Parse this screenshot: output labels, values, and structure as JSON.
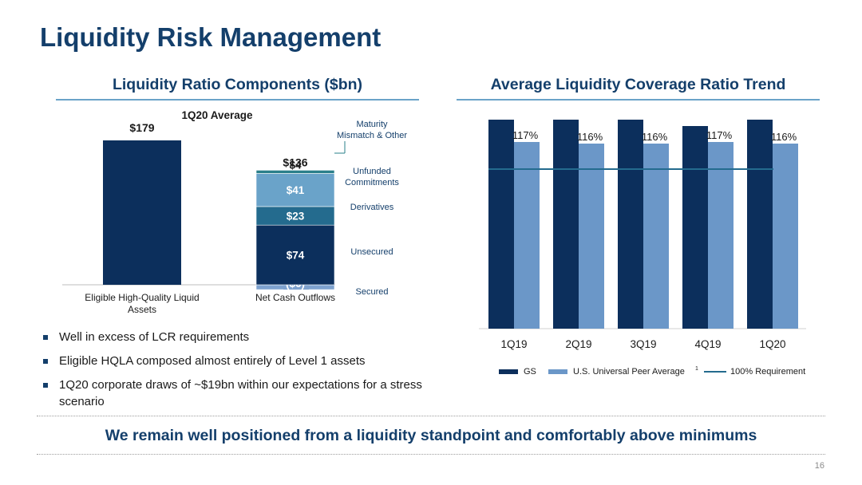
{
  "page": {
    "title": "Liquidity Risk Management",
    "footer": "We remain well positioned from a liquidity standpoint and comfortably above minimums",
    "page_number": "16"
  },
  "left_section": {
    "title": "Liquidity Ratio Components ($bn)"
  },
  "right_section": {
    "title": "Average Liquidity Coverage Ratio Trend"
  },
  "bullets": [
    "Well in excess of LCR requirements",
    "Eligible HQLA composed almost entirely of Level 1 assets",
    "1Q20 corporate draws of ~$19bn within our expectations for a stress scenario"
  ],
  "colors": {
    "navy": "#0c2f5c",
    "mid_blue": "#246b8e",
    "light_blue": "#6aa3c9",
    "peer_blue": "#6b97c8",
    "secured": "#7ea2cf",
    "title_blue": "#143f6b"
  },
  "chart_data": [
    {
      "type": "bar",
      "title": "1Q20 Average",
      "categories": [
        "Eligible High-Quality Liquid Assets",
        "Net Cash Outflows"
      ],
      "ylim": [
        -6,
        179
      ],
      "stacked": true,
      "totals": [
        {
          "category": "Eligible High-Quality Liquid Assets",
          "label": "$179",
          "value": 179
        },
        {
          "category": "Net Cash Outflows",
          "label": "$136",
          "value": 136
        }
      ],
      "bars": [
        {
          "category": "Eligible High-Quality Liquid Assets",
          "value": 179,
          "color": "#0c2f5c"
        }
      ],
      "segments": [
        {
          "name": "Secured",
          "value": -6,
          "label": "($6)",
          "color": "#7ea2cf"
        },
        {
          "name": "Unsecured",
          "value": 74,
          "label": "$74",
          "color": "#0c2f5c"
        },
        {
          "name": "Derivatives",
          "value": 23,
          "label": "$23",
          "color": "#246b8e"
        },
        {
          "name": "Unfunded Commitments",
          "value": 41,
          "label": "$41",
          "color": "#6aa3c9"
        },
        {
          "name": "Maturity Mismatch & Other",
          "value": 4,
          "label": "$4",
          "color": "#2a7f8a"
        }
      ],
      "segment_legend": [
        "Maturity Mismatch & Other",
        "Unfunded Commitments",
        "Derivatives",
        "Unsecured",
        "Secured"
      ]
    },
    {
      "type": "bar",
      "categories": [
        "1Q19",
        "2Q19",
        "3Q19",
        "4Q19",
        "1Q20"
      ],
      "series": [
        {
          "name": "GS",
          "values": [
            134,
            133,
            134,
            127,
            131
          ],
          "labels": [
            "134%",
            "133%",
            "134%",
            "127%",
            "131%"
          ],
          "color": "#0c2f5c"
        },
        {
          "name": "U.S. Universal Peer Average",
          "superscript": "1",
          "values": [
            117,
            116,
            116,
            117,
            116
          ],
          "labels": [
            "117%",
            "116%",
            "116%",
            "117%",
            "116%"
          ],
          "color": "#6b97c8"
        }
      ],
      "reference_line": {
        "name": "100% Requirement",
        "value": 100,
        "color": "#246b8e"
      },
      "ylim": [
        0,
        150
      ],
      "legend": "bottom"
    }
  ]
}
